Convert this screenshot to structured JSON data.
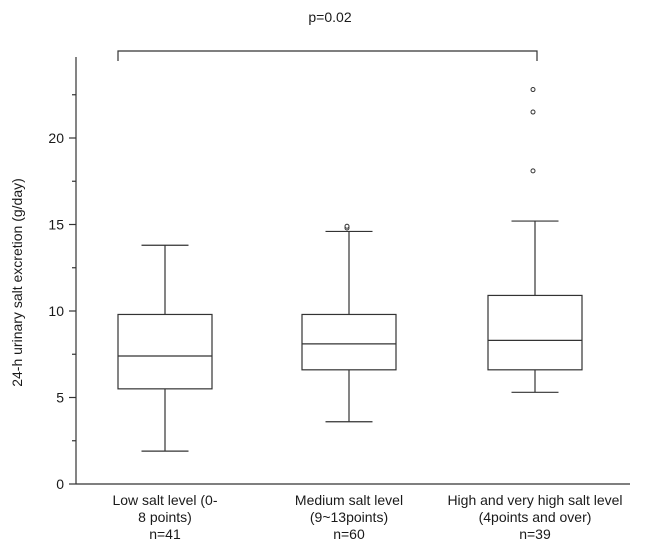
{
  "chart_data": {
    "type": "box",
    "ylabel": "24-h urinary salt excretion (g/day)",
    "ylim": [
      0,
      25
    ],
    "yticks": [
      0,
      5,
      10,
      15,
      20
    ],
    "annotation": "p=0.02",
    "bracket": {
      "from": 0,
      "to": 2
    },
    "groups": [
      {
        "label_lines": [
          "Low salt level (0-",
          "8 points)"
        ],
        "n_label": "n=41",
        "min": 1.9,
        "q1": 5.5,
        "median": 7.4,
        "q3": 9.8,
        "max": 13.8,
        "outliers": []
      },
      {
        "label_lines": [
          "Medium salt level",
          "(9~13points)"
        ],
        "n_label": "n=60",
        "min": 3.6,
        "q1": 6.6,
        "median": 8.1,
        "q3": 9.8,
        "max": 14.6,
        "outliers": [
          14.8,
          14.9
        ]
      },
      {
        "label_lines": [
          "High and very high salt level",
          "(4points and over)"
        ],
        "n_label": "n=39",
        "min": 5.3,
        "q1": 6.6,
        "median": 8.3,
        "q3": 10.9,
        "max": 15.2,
        "outliers": [
          18.1,
          21.5,
          22.8
        ]
      }
    ]
  }
}
